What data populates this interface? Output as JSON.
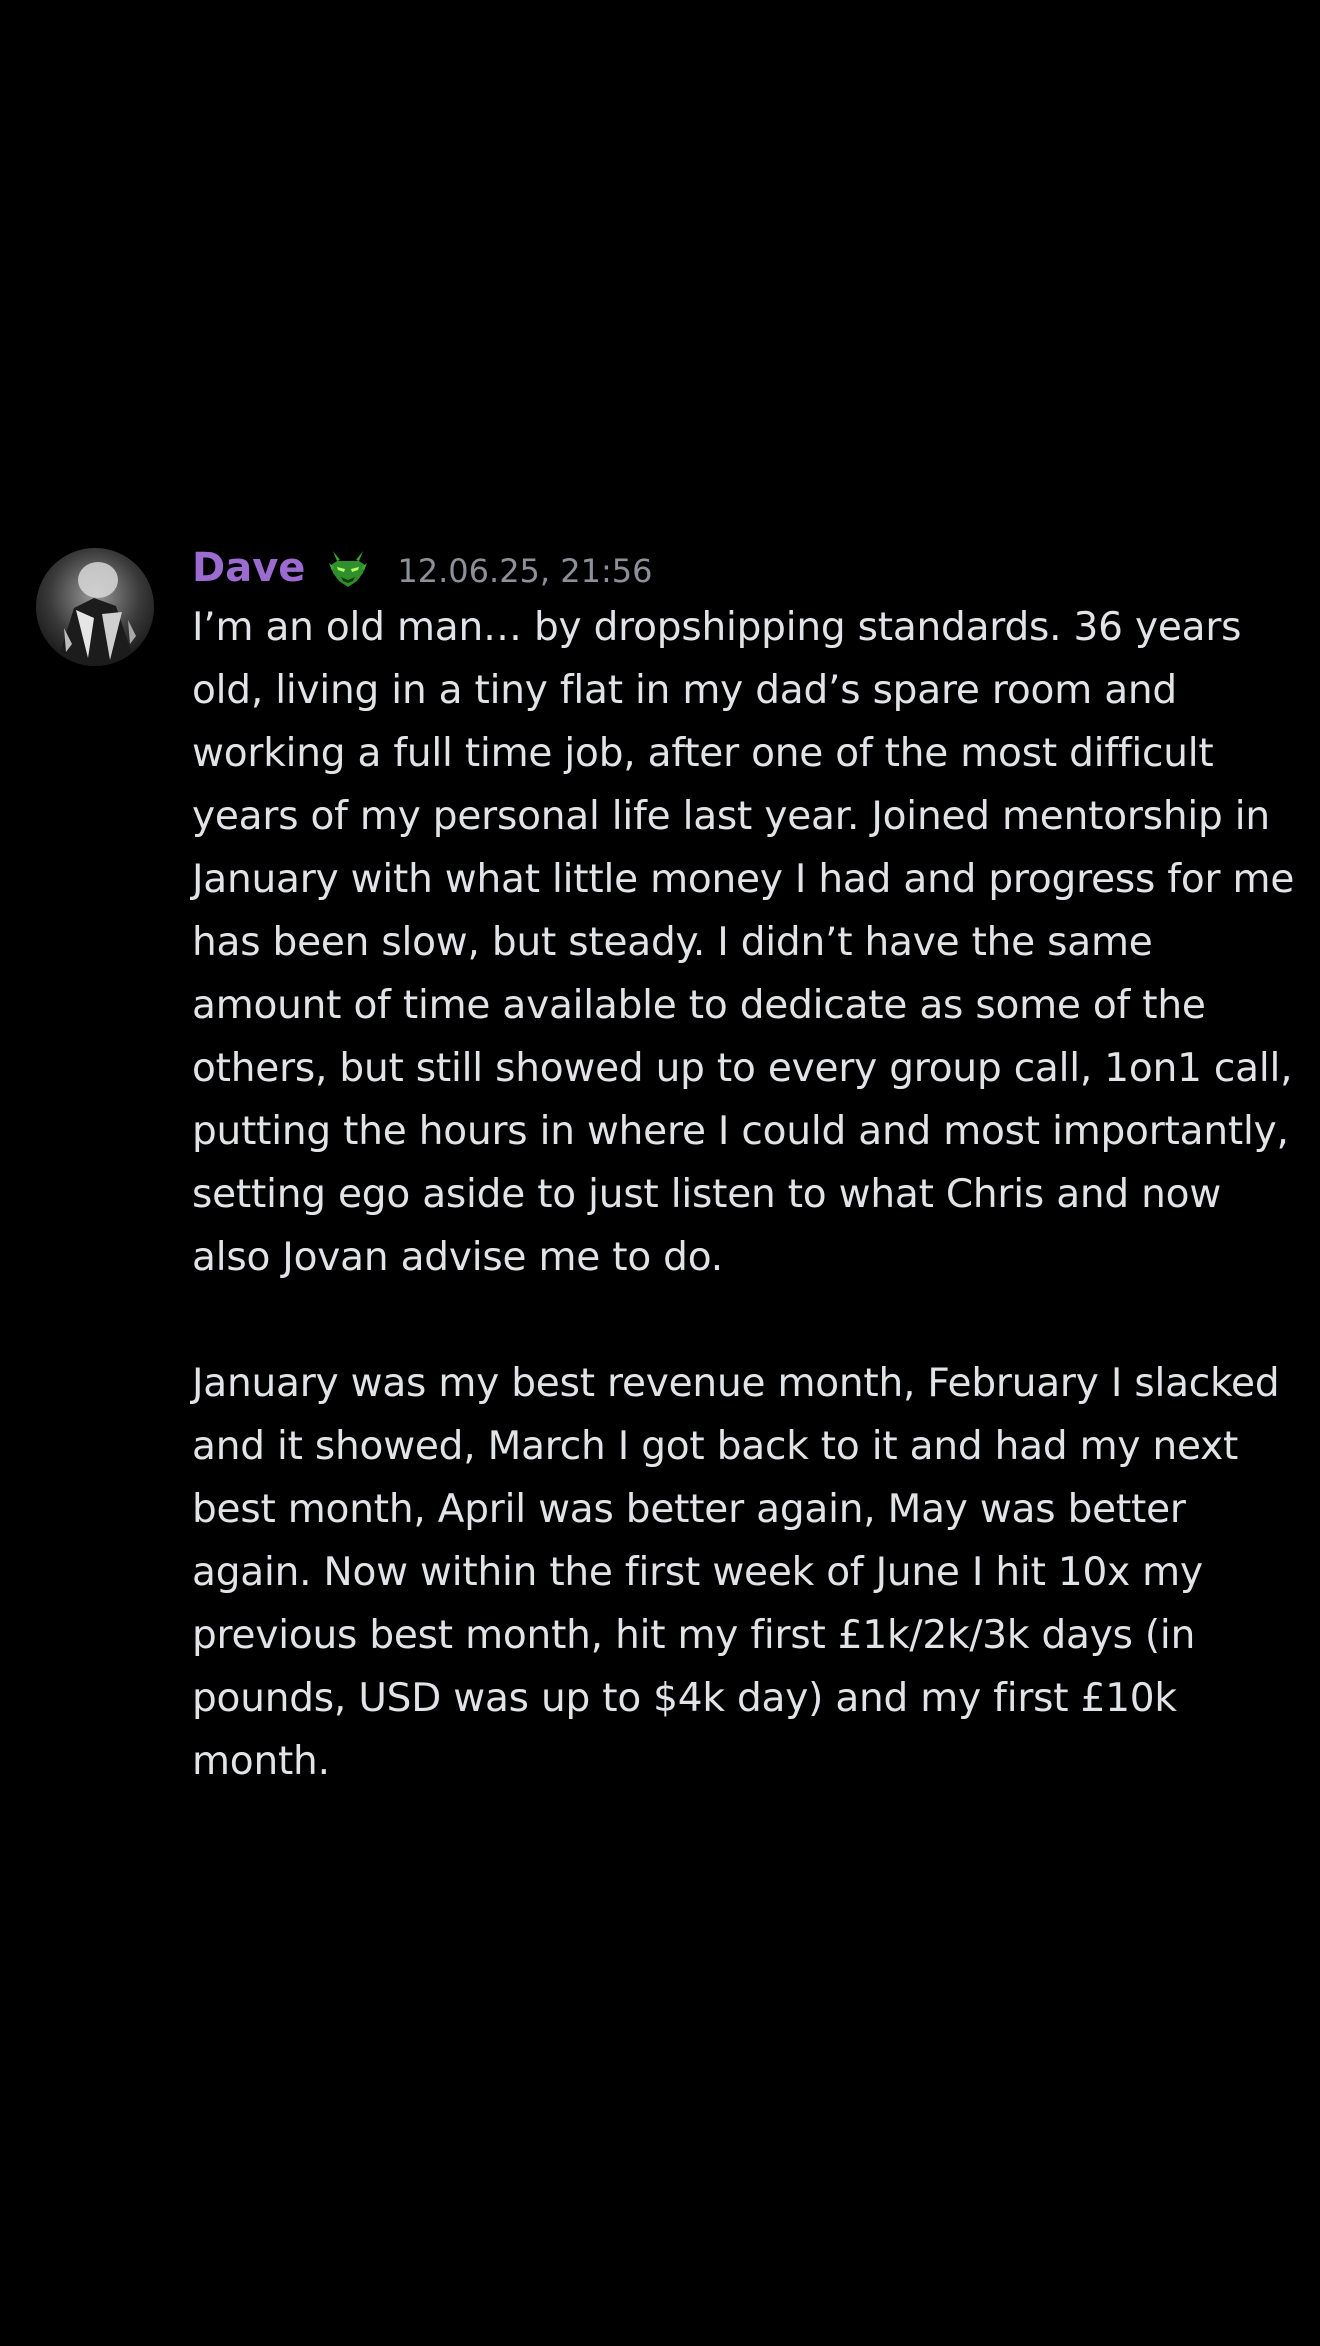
{
  "message": {
    "author": {
      "name": "Dave",
      "name_color": "#9b6bd0",
      "avatar_icon": "avatar-image",
      "badge_icon": "green-demon-badge-icon",
      "badge_color": "#3fa535"
    },
    "timestamp": "12.06.25, 21:56",
    "paragraphs": [
      "I’m an old man… by dropshipping standards. 36 years old, living in a tiny flat in my dad’s spare room and working a full time job, after one of the most difficult years of my personal life last year. Joined mentorship in January with what little money I had and progress for me has been slow, but steady. I didn’t have the same amount of time available to dedicate as some of the others, but still showed up to every group call, 1on1 call, putting the hours in where I could and most importantly, setting ego aside to just listen to what Chris and now also Jovan advise me to do.",
      "January was my best revenue month, February I slacked and it showed, March I got back to it and had my next best month, April was better again, May was better again. Now within the first week of June I hit 10x my previous best month, hit my first £1k/2k/3k days (in pounds, USD was up to $4k day) and my first £10k month."
    ]
  }
}
